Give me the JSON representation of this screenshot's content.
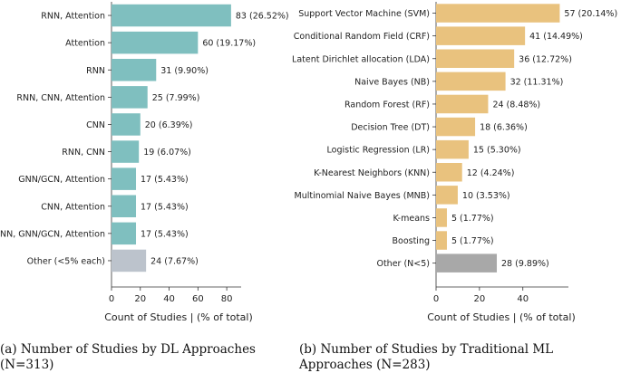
{
  "chart_data": [
    {
      "type": "bar",
      "orientation": "horizontal",
      "categories": [
        "RNN, Attention",
        "Attention",
        "RNN",
        "RNN, CNN, Attention",
        "CNN",
        "RNN, CNN",
        "GNN/GCN, Attention",
        "CNN, Attention",
        "RNN, GNN/GCN, Attention",
        "Other (<5% each)"
      ],
      "values": [
        83,
        60,
        31,
        25,
        20,
        19,
        17,
        17,
        17,
        24
      ],
      "value_labels": [
        "83 (26.52%)",
        "60 (19.17%)",
        "31 (9.90%)",
        "25 (7.99%)",
        "20 (6.39%)",
        "19 (6.07%)",
        "17 (5.43%)",
        "17 (5.43%)",
        "17 (5.43%)",
        "24 (7.67%)"
      ],
      "xlabel": "Count of Studies | (% of total)",
      "xlim": [
        0,
        90
      ],
      "xticks": [
        0,
        20,
        40,
        60,
        80
      ],
      "bar_color": "#7fbfbf",
      "other_color": "#bcc3cc",
      "caption": "(a) Number of Studies by DL Approaches (N=313)"
    },
    {
      "type": "bar",
      "orientation": "horizontal",
      "categories": [
        "Support Vector Machine (SVM)",
        "Conditional Random Field (CRF)",
        "Latent Dirichlet allocation (LDA)",
        "Naive Bayes (NB)",
        "Random Forest (RF)",
        "Decision Tree (DT)",
        "Logistic Regression (LR)",
        "K-Nearest Neighbors (KNN)",
        "Multinomial Naive Bayes (MNB)",
        "K-means",
        "Boosting",
        "Other (N<5)"
      ],
      "values": [
        57,
        41,
        36,
        32,
        24,
        18,
        15,
        12,
        10,
        5,
        5,
        28
      ],
      "value_labels": [
        "57 (20.14%)",
        "41 (14.49%)",
        "36 (12.72%)",
        "32 (11.31%)",
        "24 (8.48%)",
        "18 (6.36%)",
        "15 (5.30%)",
        "12 (4.24%)",
        "10 (3.53%)",
        "5 (1.77%)",
        "5 (1.77%)",
        "28 (9.89%)"
      ],
      "xlabel": "Count of Studies | (% of total)",
      "xlim": [
        0,
        61
      ],
      "xticks": [
        0,
        20,
        40
      ],
      "bar_color": "#e9c27e",
      "other_color": "#a8a8a8",
      "caption": "(b) Number of Studies by Traditional ML Approaches (N=283)"
    }
  ]
}
